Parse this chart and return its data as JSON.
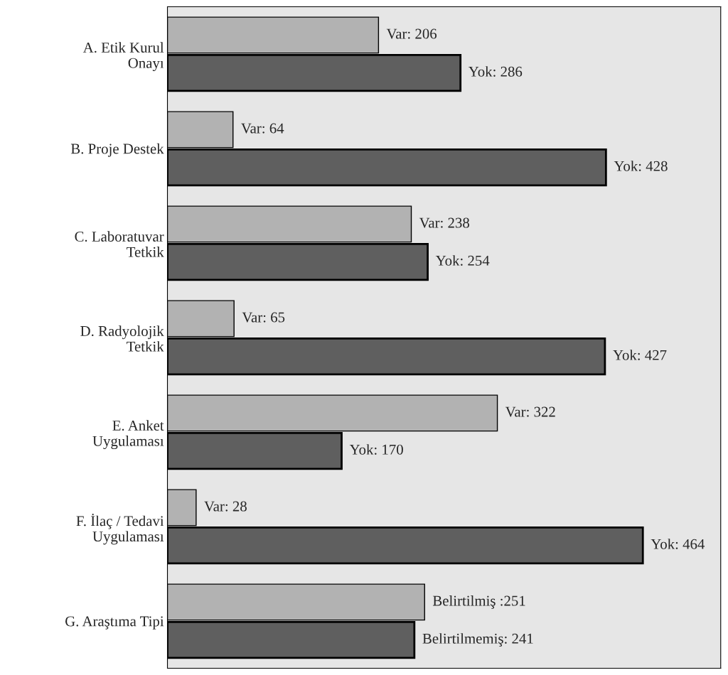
{
  "chart_data": {
    "type": "bar",
    "orientation": "horizontal",
    "categories": [
      "A. Etik Kurul\nOnayı",
      "B. Proje Destek",
      "C. Laboratuvar\nTetkik",
      "D. Radyolojik\nTetkik",
      "E. Anket\nUygulaması",
      "F. İlaç / Tedavi\nUygulaması",
      "G. Araştıma Tipi"
    ],
    "series": [
      {
        "color": "#b2b2b2",
        "values": [
          206,
          64,
          238,
          65,
          322,
          28,
          251
        ],
        "value_labels": [
          "Var: 206",
          "Var: 64",
          "Var: 238",
          "Var: 65",
          "Var: 322",
          "Var: 28",
          "Belirtilmiş :251"
        ]
      },
      {
        "color": "#5f5f5f",
        "values": [
          286,
          428,
          254,
          427,
          170,
          464,
          241
        ],
        "value_labels": [
          "Yok: 286",
          "Yok: 428",
          "Yok: 254",
          "Yok: 427",
          "Yok: 170",
          "Yok: 464",
          "Belirtilmemiş: 241"
        ]
      }
    ],
    "xlim": [
      0,
      540
    ],
    "tick_labels": "y",
    "grid": false,
    "legend": false
  }
}
